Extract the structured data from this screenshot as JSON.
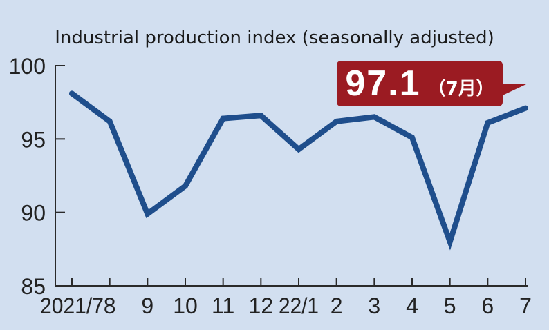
{
  "colors": {
    "background": "#d2dff0",
    "line": "#1f4e8c",
    "axis": "#2a2a2a",
    "callout": "#9b1b22"
  },
  "chart_data": {
    "type": "line",
    "title": "Industrial production index (seasonally adjusted)",
    "xlabel": "",
    "ylabel": "",
    "categories": [
      "2021/7",
      "8",
      "9",
      "10",
      "11",
      "12",
      "22/1",
      "2",
      "3",
      "4",
      "5",
      "6",
      "7"
    ],
    "series": [
      {
        "values": [
          98.1,
          96.2,
          89.9,
          91.8,
          96.4,
          96.6,
          94.3,
          96.2,
          96.5,
          95.1,
          88.0,
          96.1,
          97.1
        ]
      }
    ],
    "ylim": [
      85,
      100
    ],
    "yticks": [
      85,
      90,
      95,
      100
    ],
    "grid": false,
    "annotation": {
      "value": "97.1",
      "unit": "（7月）",
      "category": "7"
    }
  }
}
